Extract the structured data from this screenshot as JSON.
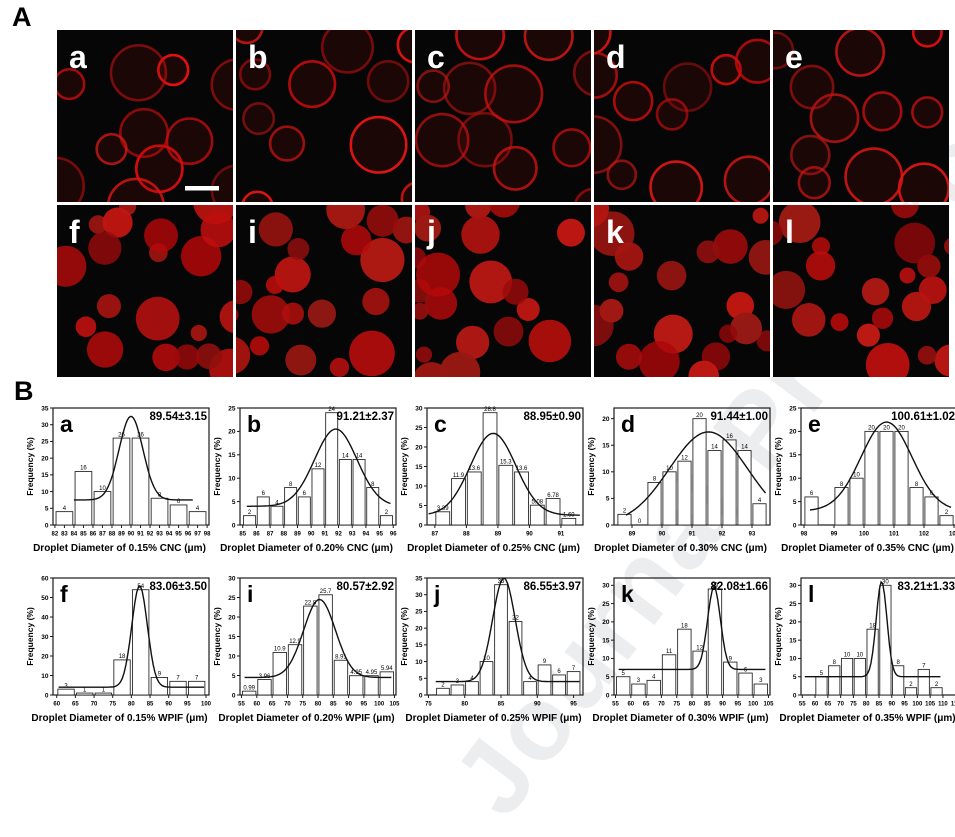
{
  "watermark": {
    "text": "Journal Pre-proof"
  },
  "colors": {
    "page_background": "#ffffff",
    "image_background": "#060606",
    "droplet_red": "#b51212",
    "axis_color": "#1a1a1a",
    "bar_fill": "#ffffff"
  },
  "panel_a": {
    "label": "A",
    "rows": [
      {
        "style": "ring",
        "tiles": [
          {
            "letter": "a",
            "scalebar": true
          },
          {
            "letter": "b",
            "scalebar": false
          },
          {
            "letter": "c",
            "scalebar": false
          },
          {
            "letter": "d",
            "scalebar": false
          },
          {
            "letter": "e",
            "scalebar": false
          }
        ]
      },
      {
        "style": "filled",
        "tiles": [
          {
            "letter": "f",
            "scalebar": false
          },
          {
            "letter": "i",
            "scalebar": false
          },
          {
            "letter": "j",
            "scalebar": false
          },
          {
            "letter": "k",
            "scalebar": false
          },
          {
            "letter": "l",
            "scalebar": false
          }
        ]
      }
    ]
  },
  "panel_b": {
    "label": "B",
    "ylabel": "Frequency (%)"
  },
  "chart_data": [
    {
      "type": "bar",
      "letter": "a",
      "annotation": "89.54±3.15",
      "xlabel": "Droplet Diameter of 0.15% CNC (μm)",
      "ylabel": "Frequency (%)",
      "bin_start": 82,
      "bin_width": 2,
      "values": [
        4,
        16,
        10,
        26,
        26,
        8,
        6,
        4
      ],
      "bar_labels": [
        "4",
        "16",
        "10",
        "26",
        "26",
        "8",
        "6",
        "4"
      ],
      "xlim": [
        81.8,
        98.2
      ],
      "xtick_step": 1,
      "ylim": [
        0,
        35
      ],
      "ytick_step": 5,
      "curve": {
        "base": 7.5,
        "amp": 25,
        "mu": 90.0,
        "sigma": 1.25,
        "x0": 84,
        "x1": 96.5
      }
    },
    {
      "type": "bar",
      "letter": "b",
      "annotation": "91.21±2.37",
      "xlabel": "Droplet Diameter of 0.20% CNC (μm)",
      "ylabel": "Frequency (%)",
      "bin_start": 85,
      "bin_width": 1,
      "values": [
        2,
        6,
        4,
        8,
        6,
        12,
        24,
        14,
        14,
        8,
        2
      ],
      "bar_labels": [
        "2",
        "6",
        "4",
        "8",
        "6",
        "12",
        "24",
        "14",
        "14",
        "8",
        "2"
      ],
      "xlim": [
        84.8,
        96.2
      ],
      "xtick_step": 1,
      "ylim": [
        0,
        25
      ],
      "ytick_step": 5,
      "curve": {
        "base": 4,
        "amp": 16.5,
        "mu": 91.8,
        "sigma": 1.55,
        "x0": 85.3,
        "x1": 95.8
      }
    },
    {
      "type": "bar",
      "letter": "c",
      "annotation": "88.95±0.90",
      "xlabel": "Droplet Diameter of 0.25% CNC (μm)",
      "ylabel": "Frequency (%)",
      "bin_start": 87,
      "bin_width": 0.5,
      "values": [
        3.39,
        11.9,
        13.6,
        28.8,
        15.3,
        13.6,
        5.08,
        6.78,
        1.69
      ],
      "bar_labels": [
        "3.39",
        "11.9",
        "13.6",
        "28.8",
        "15.3",
        "13.6",
        "5.08",
        "6.78",
        "1.69"
      ],
      "xlim": [
        86.75,
        91.7
      ],
      "xtick_step": 1,
      "ylim": [
        0,
        30
      ],
      "ytick_step": 5,
      "curve": {
        "base": 2.5,
        "amp": 21,
        "mu": 88.85,
        "sigma": 0.72,
        "x0": 86.8,
        "x1": 91.6
      }
    },
    {
      "type": "bar",
      "letter": "d",
      "annotation": "91.44±1.00",
      "xlabel": "Droplet Diameter of 0.30% CNC (μm)",
      "ylabel": "Frequency (%)",
      "bin_start": 88.5,
      "bin_width": 0.5,
      "values": [
        2,
        0,
        8,
        10,
        12,
        20,
        14,
        16,
        14,
        4
      ],
      "bar_labels": [
        "2",
        "0",
        "8",
        "10",
        "12",
        "20",
        "14",
        "16",
        "14",
        "4"
      ],
      "xlim": [
        88.4,
        93.6
      ],
      "xtick_step": 1,
      "ylim": [
        0,
        22
      ],
      "ytick_step": 5,
      "curve": {
        "base": 0,
        "amp": 17.5,
        "mu": 91.55,
        "sigma": 1.3,
        "x0": 88.8,
        "x1": 93.45
      }
    },
    {
      "type": "bar",
      "letter": "e",
      "annotation": "100.61±1.02",
      "xlabel": "Droplet Diameter of 0.35% CNC (μm)",
      "ylabel": "Frequency (%)",
      "bin_start": 98,
      "bin_width": 0.5,
      "values": [
        6,
        0,
        8,
        10,
        20,
        20,
        20,
        8,
        6,
        2
      ],
      "bar_labels": [
        "6",
        "",
        "8",
        "10",
        "20",
        "20",
        "20",
        "8",
        "6",
        "2"
      ],
      "xlim": [
        97.9,
        103.1
      ],
      "xtick_step": 1,
      "ylim": [
        0,
        25
      ],
      "ytick_step": 5,
      "curve": {
        "base": 3,
        "amp": 19,
        "mu": 100.75,
        "sigma": 0.85,
        "x0": 98.2,
        "x1": 102.9
      }
    },
    {
      "type": "bar",
      "letter": "f",
      "annotation": "83.06±3.50",
      "xlabel": "Droplet Diameter of 0.15% WPIF (μm)",
      "ylabel": "Frequency (%)",
      "bin_start": 60,
      "bin_width": 5,
      "values": [
        3,
        1,
        1,
        18,
        54,
        9,
        7,
        7
      ],
      "bar_labels": [
        "3",
        "1",
        "1",
        "18",
        "54",
        "9",
        "7",
        "7"
      ],
      "xlim": [
        59,
        100.8
      ],
      "xtick_step": 5,
      "ylim": [
        0,
        60
      ],
      "ytick_step": 10,
      "curve": {
        "base": 4,
        "amp": 52,
        "mu": 82.2,
        "sigma": 2.1,
        "x0": 60.5,
        "x1": 99.5
      }
    },
    {
      "type": "bar",
      "letter": "i",
      "annotation": "80.57±2.92",
      "xlabel": "Droplet Diameter of 0.20% WPIF (μm)",
      "ylabel": "Frequency (%)",
      "bin_start": 55,
      "bin_width": 5,
      "values": [
        0.99,
        3.96,
        10.9,
        12.9,
        22.8,
        25.7,
        8.91,
        4.95,
        4.95,
        5.94
      ],
      "bar_labels": [
        "0.99",
        "3.96",
        "10.9",
        "12.9",
        "22.8",
        "25.7",
        "8.91",
        "4.95",
        "4.95",
        "5.94"
      ],
      "xlim": [
        54.5,
        105.5
      ],
      "xtick_step": 5,
      "ylim": [
        0,
        30
      ],
      "ytick_step": 5,
      "curve": {
        "base": 4.5,
        "amp": 20,
        "mu": 80.5,
        "sigma": 5.2,
        "x0": 56,
        "x1": 104
      }
    },
    {
      "type": "bar",
      "letter": "j",
      "annotation": "86.55±3.97",
      "xlabel": "Droplet Diameter of 0.25% WPIF (μm)",
      "ylabel": "Frequency (%)",
      "bin_start": 76,
      "bin_width": 2,
      "values": [
        2,
        3,
        4,
        10,
        33,
        22,
        4,
        9,
        6,
        7
      ],
      "bar_labels": [
        "2",
        "3",
        "4",
        "10",
        "33",
        "22",
        "4",
        "9",
        "6",
        "7"
      ],
      "xlim": [
        74.8,
        96.3
      ],
      "xtick_step": 5,
      "ylim": [
        0,
        35
      ],
      "ytick_step": 5,
      "curve": {
        "base": 4,
        "amp": 31,
        "mu": 85.4,
        "sigma": 1.55,
        "x0": 76,
        "x1": 95.8
      }
    },
    {
      "type": "bar",
      "letter": "k",
      "annotation": "82.08±1.66",
      "xlabel": "Droplet Diameter of 0.30% WPIF (μm)",
      "ylabel": "Frequency (%)",
      "bin_start": 55,
      "bin_width": 5,
      "values": [
        5,
        3,
        4,
        11,
        18,
        12,
        29,
        9,
        6,
        3
      ],
      "bar_labels": [
        "5",
        "3",
        "4",
        "11",
        "18",
        "12",
        "29",
        "9",
        "6",
        "3"
      ],
      "xlim": [
        54.5,
        105.5
      ],
      "xtick_step": 5,
      "ylim": [
        0,
        32
      ],
      "ytick_step": 5,
      "curve": {
        "base": 7,
        "amp": 22.5,
        "mu": 87.2,
        "sigma": 2.1,
        "x0": 56,
        "x1": 104
      }
    },
    {
      "type": "bar",
      "letter": "l",
      "annotation": "83.21±1.33",
      "xlabel": "Droplet Diameter of 0.35% WPIF (μm)",
      "ylabel": "Frequency (%)",
      "bin_start": 60,
      "bin_width": 5,
      "values": [
        5,
        8,
        10,
        10,
        18,
        30,
        8,
        2,
        7,
        2
      ],
      "bar_labels": [
        "5",
        "8",
        "10",
        "10",
        "18",
        "30",
        "8",
        "2",
        "7",
        "2"
      ],
      "xlim": [
        54.5,
        115.5
      ],
      "xtick_step": 5,
      "ylim": [
        0,
        32
      ],
      "ytick_step": 5,
      "curve": {
        "base": 5,
        "amp": 26,
        "mu": 86.0,
        "sigma": 2.1,
        "x0": 56,
        "x1": 109
      }
    }
  ]
}
